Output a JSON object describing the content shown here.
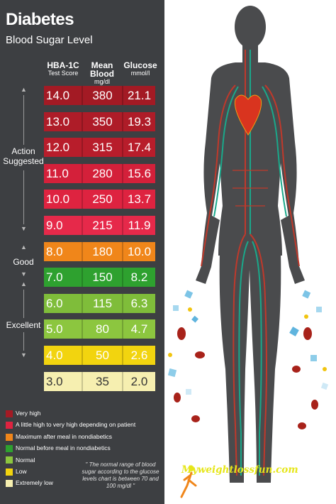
{
  "header": {
    "title": "Diabetes",
    "subtitle": "Blood Sugar Level"
  },
  "columns": [
    {
      "label": "HBA-1C",
      "sub": "Test Score"
    },
    {
      "label": "Mean Blood",
      "sub": "mg/dl"
    },
    {
      "label": "Glucose",
      "sub": "mmol/l"
    }
  ],
  "rows": [
    {
      "hba": "14.0",
      "mg": "380",
      "mmol": "21.1",
      "color": "#a31a24"
    },
    {
      "hba": "13.0",
      "mg": "350",
      "mmol": "19.3",
      "color": "#ae1c28"
    },
    {
      "hba": "12.0",
      "mg": "315",
      "mmol": "17.4",
      "color": "#b81d2b"
    },
    {
      "hba": "11.0",
      "mg": "280",
      "mmol": "15.6",
      "color": "#d4203a"
    },
    {
      "hba": "10.0",
      "mg": "250",
      "mmol": "13.7",
      "color": "#de2340"
    },
    {
      "hba": "9.0",
      "mg": "215",
      "mmol": "11.9",
      "color": "#e6294a"
    },
    {
      "hba": "8.0",
      "mg": "180",
      "mmol": "10.0",
      "color": "#f0861a"
    },
    {
      "hba": "7.0",
      "mg": "150",
      "mmol": "8.2",
      "color": "#2ea12f"
    },
    {
      "hba": "6.0",
      "mg": "115",
      "mmol": "6.3",
      "color": "#7fbd3a"
    },
    {
      "hba": "5.0",
      "mg": "80",
      "mmol": "4.7",
      "color": "#8cc63f"
    },
    {
      "hba": "4.0",
      "mg": "50",
      "mmol": "2.6",
      "color": "#f2d40f"
    },
    {
      "hba": "3.0",
      "mg": "35",
      "mmol": "2.0",
      "color": "#f6efb0"
    }
  ],
  "side_labels": {
    "action": "Action Suggested",
    "good": "Good",
    "excellent": "Excellent"
  },
  "legend": [
    {
      "label": "Very high",
      "color": "#a31a24"
    },
    {
      "label": "A little high to very high depending on patient",
      "color": "#de2340"
    },
    {
      "label": "Maximum after meal in nondiabetics",
      "color": "#f0861a"
    },
    {
      "label": "Normal before meal in nondiabetics",
      "color": "#2ea12f"
    },
    {
      "label": "Normal",
      "color": "#8cc63f"
    },
    {
      "label": "Low",
      "color": "#f2d40f"
    },
    {
      "label": "Extremely low",
      "color": "#f6efb0"
    }
  ],
  "note": "\" The normal range of blood sugar according to the glucose levels chart is between 70 and 100 mg/dl \"",
  "brand": "Myweightlossfun.com"
}
